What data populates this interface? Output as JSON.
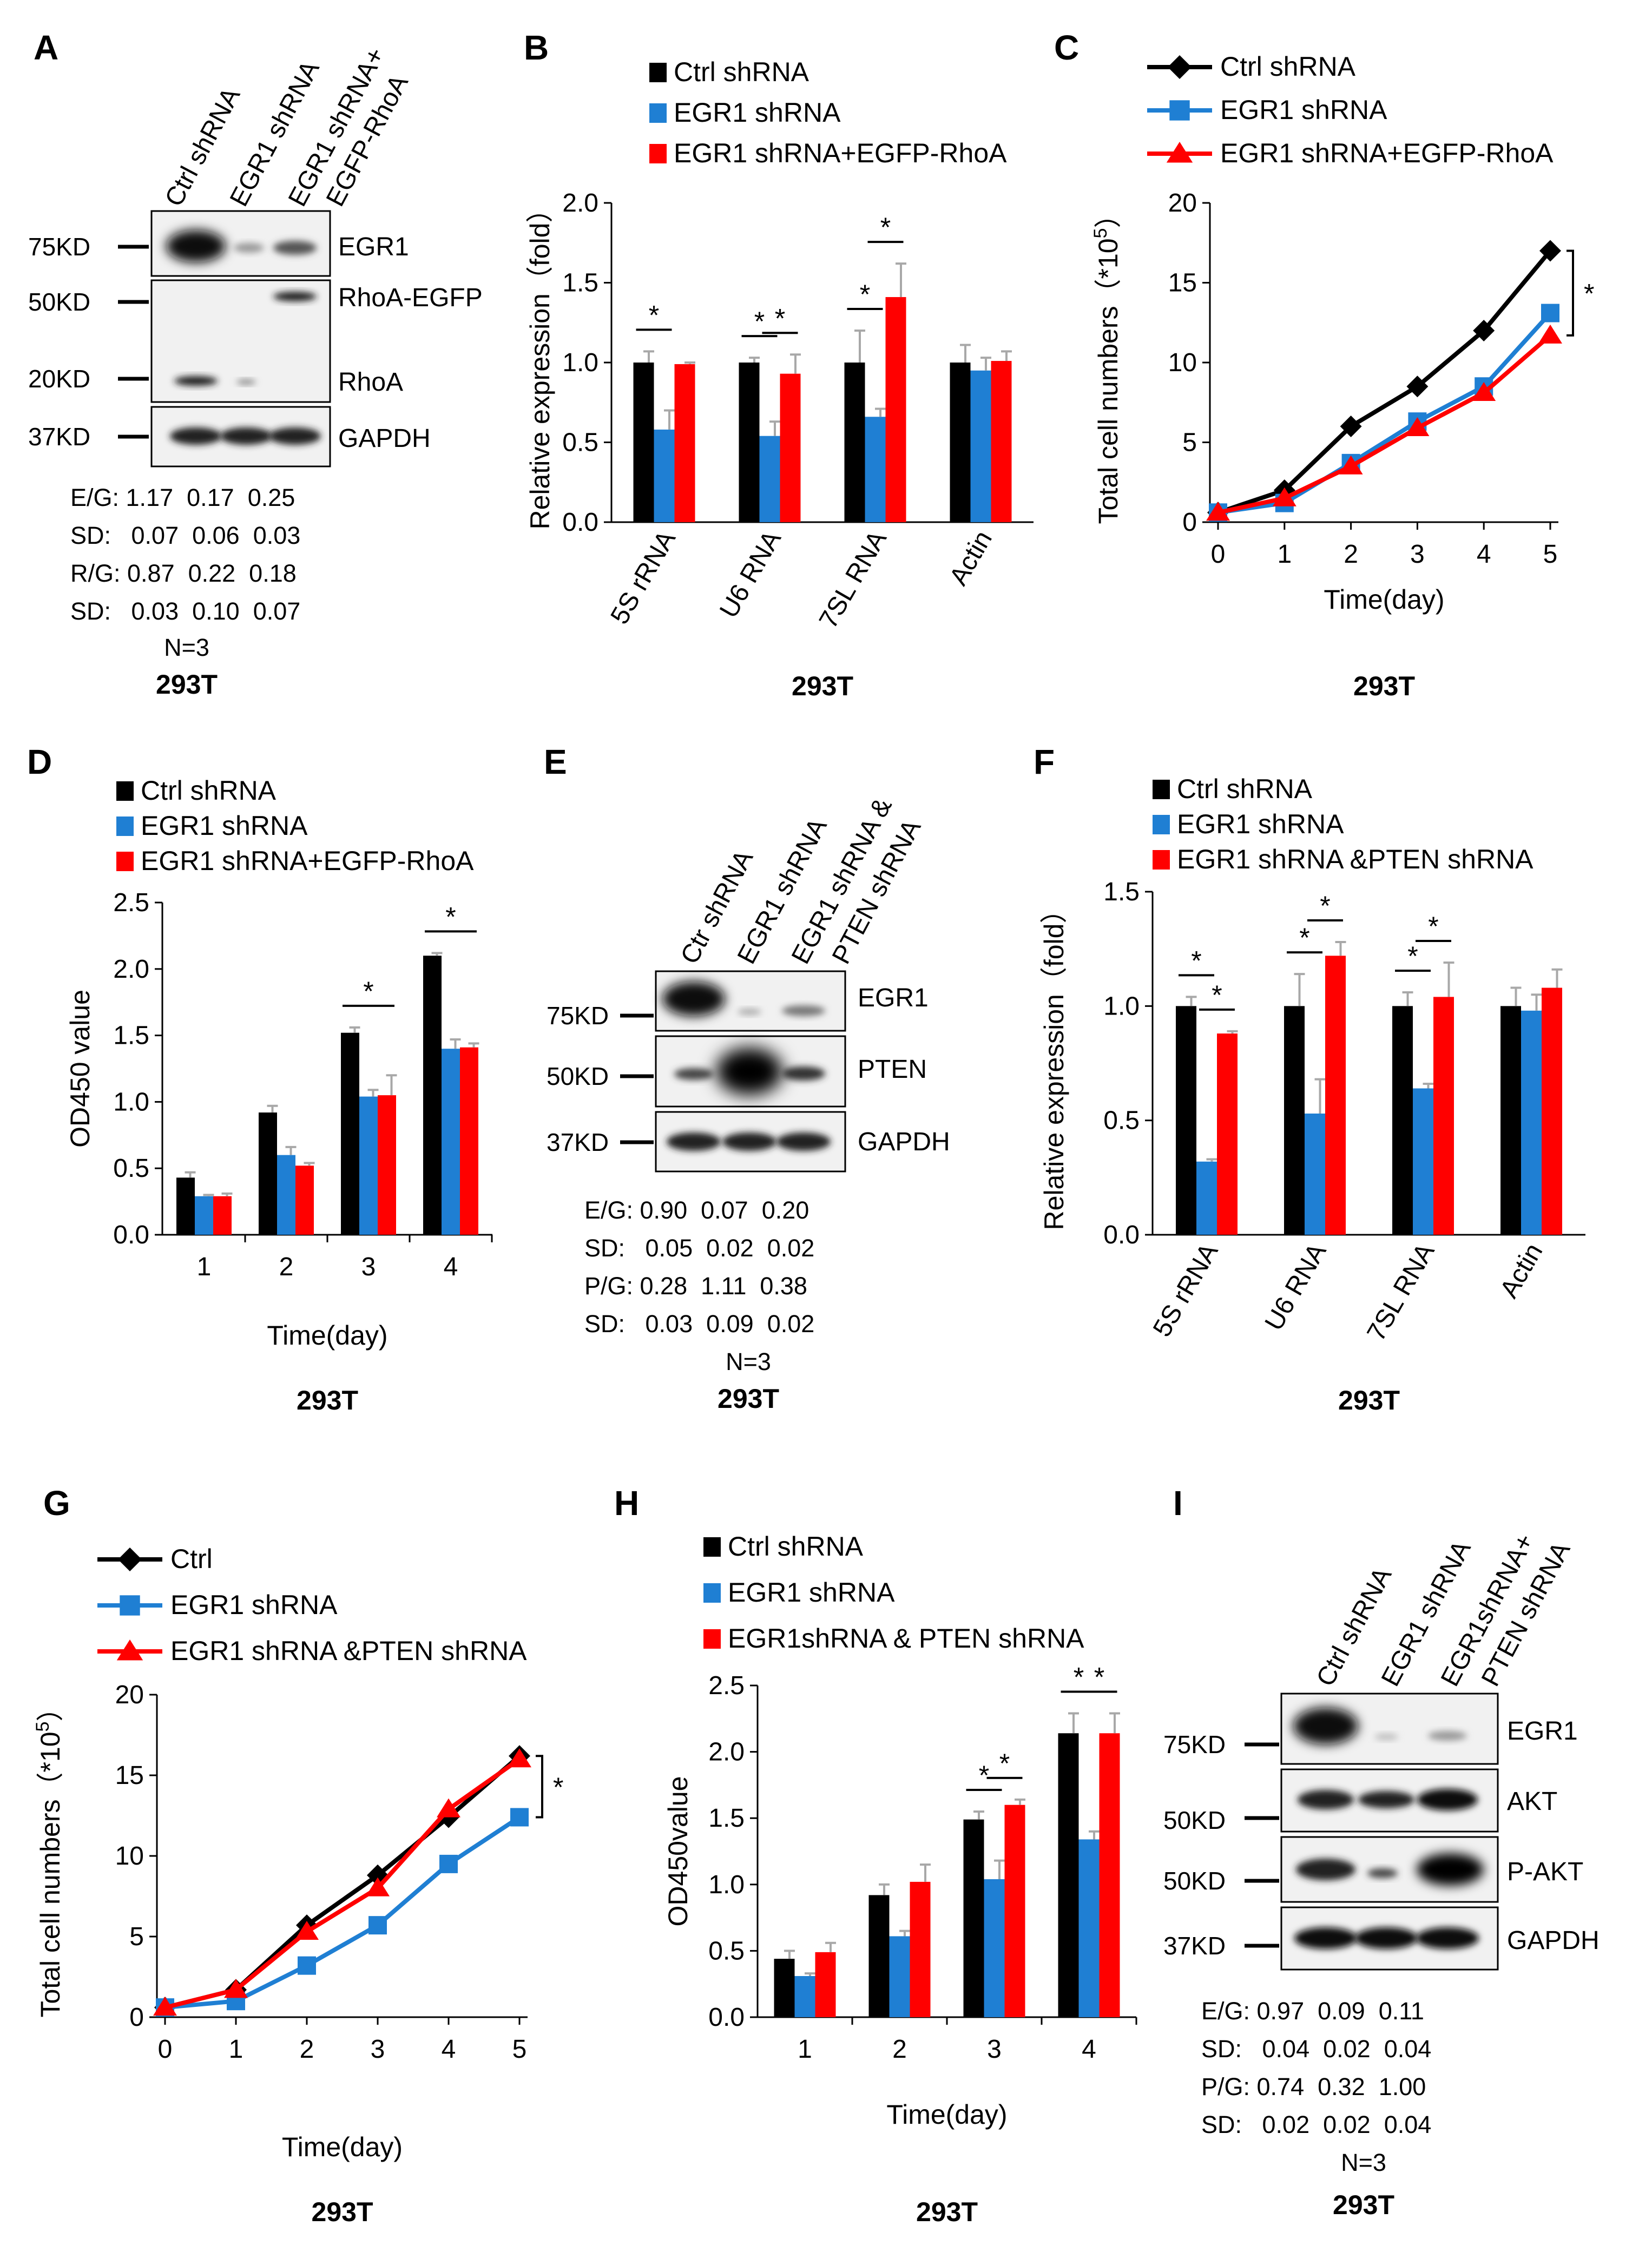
{
  "colors": {
    "ctrl": "#000000",
    "egr1": "#1f7fd3",
    "rescue": "#ff0000",
    "error": "#a8a8a8"
  },
  "cell_line": "293T",
  "panel_A": {
    "letter": "A",
    "lanes": [
      "Ctrl shRNA",
      "EGR1 shRNA",
      "EGR1 shRNA+",
      "EGFP-RhoA"
    ],
    "markers": [
      "75KD",
      "50KD",
      "20KD",
      "37KD"
    ],
    "bands": [
      "EGR1",
      "RhoA-EGFP",
      "RhoA",
      "GAPDH"
    ],
    "quant": [
      "E/G: 1.17  0.17  0.25",
      "SD:   0.07  0.06  0.03",
      "R/G: 0.87  0.22  0.18",
      "SD:   0.03  0.10  0.07"
    ],
    "n": "N=3",
    "caption": "293T"
  },
  "panel_E": {
    "letter": "E",
    "lanes": [
      "Ctr shRNA",
      "EGR1 shRNA",
      "EGR1 shRNA &",
      "PTEN shRNA"
    ],
    "markers": [
      "75KD",
      "50KD",
      "37KD"
    ],
    "bands": [
      "EGR1",
      "PTEN",
      "GAPDH"
    ],
    "quant": [
      "E/G: 0.90  0.07  0.20",
      "SD:   0.05  0.02  0.02",
      "P/G: 0.28  1.11  0.38",
      "SD:   0.03  0.09  0.02"
    ],
    "n": "N=3",
    "caption": "293T"
  },
  "panel_I": {
    "letter": "I",
    "lanes": [
      "Ctrl shRNA",
      "EGR1 shRNA",
      "EGR1shRNA+",
      "PTEN shRNA"
    ],
    "markers": [
      "75KD",
      "50KD",
      "50KD",
      "37KD"
    ],
    "bands": [
      "EGR1",
      "AKT",
      "P-AKT",
      "GAPDH"
    ],
    "quant": [
      "E/G: 0.97  0.09  0.11",
      "SD:   0.04  0.02  0.04",
      "P/G: 0.74  0.32  1.00",
      "SD:   0.02  0.02  0.04"
    ],
    "n": "N=3",
    "caption": "293T"
  },
  "chart_data": [
    {
      "id": "B",
      "type": "bar",
      "letter": "B",
      "categories": [
        "5S rRNA",
        "U6 RNA",
        "7SL RNA",
        "Actin"
      ],
      "series": [
        {
          "name": "Ctrl shRNA",
          "color": "#000000",
          "values": [
            1.0,
            1.0,
            1.0,
            1.0
          ],
          "errors": [
            0.07,
            0.03,
            0.2,
            0.11
          ]
        },
        {
          "name": "EGR1 shRNA",
          "color": "#1f7fd3",
          "values": [
            0.58,
            0.54,
            0.66,
            0.95
          ],
          "errors": [
            0.12,
            0.09,
            0.05,
            0.08
          ]
        },
        {
          "name": "EGR1 shRNA+EGFP-RhoA",
          "color": "#ff0000",
          "values": [
            0.99,
            0.93,
            1.41,
            1.01
          ],
          "errors": [
            0.01,
            0.12,
            0.21,
            0.06
          ]
        }
      ],
      "ylabel": "Relative expression（fold）",
      "xlabel": "",
      "ylim": [
        0,
        2.0
      ],
      "yticks": [
        "0.0",
        "0.5",
        "1.0",
        "1.5",
        "2.0"
      ],
      "star": "*",
      "caption": "293T"
    },
    {
      "id": "C",
      "type": "line",
      "letter": "C",
      "x": [
        0,
        1,
        2,
        3,
        4,
        5
      ],
      "series": [
        {
          "name": "Ctrl shRNA",
          "color": "#000000",
          "marker": "diamond",
          "values": [
            0.6,
            2.0,
            6.0,
            8.5,
            12.0,
            17.0
          ]
        },
        {
          "name": "EGR1 shRNA",
          "color": "#1f7fd3",
          "marker": "square",
          "values": [
            0.6,
            1.2,
            3.7,
            6.3,
            8.5,
            13.1
          ]
        },
        {
          "name": "EGR1 shRNA+EGFP-RhoA",
          "color": "#ff0000",
          "marker": "triangle",
          "values": [
            0.6,
            1.5,
            3.5,
            5.9,
            8.1,
            11.7
          ]
        }
      ],
      "ylabel": "Total cell numbers（*10",
      "ylabel_sup": "5",
      "ylabel_end": "）",
      "xlabel": "Time(day)",
      "ylim": [
        0,
        20
      ],
      "yticks": [
        "0",
        "5",
        "10",
        "15",
        "20"
      ],
      "xticks": [
        "0",
        "1",
        "2",
        "3",
        "4",
        "5"
      ],
      "star": "*",
      "caption": "293T"
    },
    {
      "id": "D",
      "type": "bar",
      "letter": "D",
      "categories": [
        "1",
        "2",
        "3",
        "4"
      ],
      "series": [
        {
          "name": "Ctrl shRNA",
          "color": "#000000",
          "values": [
            0.43,
            0.92,
            1.52,
            2.1
          ],
          "errors": [
            0.04,
            0.05,
            0.04,
            0.02
          ]
        },
        {
          "name": "EGR1 shRNA",
          "color": "#1f7fd3",
          "values": [
            0.29,
            0.6,
            1.04,
            1.4
          ],
          "errors": [
            0.01,
            0.06,
            0.05,
            0.07
          ]
        },
        {
          "name": "EGR1 shRNA+EGFP-RhoA",
          "color": "#ff0000",
          "values": [
            0.29,
            0.52,
            1.05,
            1.41
          ],
          "errors": [
            0.02,
            0.02,
            0.15,
            0.03
          ]
        }
      ],
      "ylabel": "OD450 value",
      "xlabel": "Time(day)",
      "ylim": [
        0,
        2.5
      ],
      "yticks": [
        "0.0",
        "0.5",
        "1.0",
        "1.5",
        "2.0",
        "2.5"
      ],
      "star": "*",
      "caption": "293T"
    },
    {
      "id": "F",
      "type": "bar",
      "letter": "F",
      "categories": [
        "5S rRNA",
        "U6 RNA",
        "7SL RNA",
        "Actin"
      ],
      "series": [
        {
          "name": "Ctrl shRNA",
          "color": "#000000",
          "values": [
            1.0,
            1.0,
            1.0,
            1.0
          ],
          "errors": [
            0.04,
            0.14,
            0.06,
            0.08
          ]
        },
        {
          "name": "EGR1 shRNA",
          "color": "#1f7fd3",
          "values": [
            0.32,
            0.53,
            0.64,
            0.98
          ],
          "errors": [
            0.01,
            0.15,
            0.02,
            0.07
          ]
        },
        {
          "name": "EGR1 shRNA &PTEN shRNA",
          "color": "#ff0000",
          "values": [
            0.88,
            1.22,
            1.04,
            1.08
          ],
          "errors": [
            0.01,
            0.06,
            0.15,
            0.08
          ]
        }
      ],
      "ylabel": "Relative expression（fold）",
      "xlabel": "",
      "ylim": [
        0,
        1.5
      ],
      "yticks": [
        "0.0",
        "0.5",
        "1.0",
        "1.5"
      ],
      "star": "*",
      "caption": "293T"
    },
    {
      "id": "G",
      "type": "line",
      "letter": "G",
      "x": [
        0,
        1,
        2,
        3,
        4,
        5
      ],
      "series": [
        {
          "name": "Ctrl",
          "color": "#000000",
          "marker": "diamond",
          "values": [
            0.6,
            1.7,
            5.7,
            8.8,
            12.4,
            16.2
          ]
        },
        {
          "name": "EGR1 shRNA",
          "color": "#1f7fd3",
          "marker": "square",
          "values": [
            0.6,
            1.0,
            3.2,
            5.7,
            9.5,
            12.4
          ]
        },
        {
          "name": "EGR1 shRNA &PTEN shRNA",
          "color": "#ff0000",
          "marker": "triangle",
          "values": [
            0.6,
            1.7,
            5.3,
            8.0,
            12.9,
            16.0
          ]
        }
      ],
      "ylabel": "Total cell numbers（*10",
      "ylabel_sup": "5",
      "ylabel_end": "）",
      "xlabel": "Time(day)",
      "ylim": [
        0,
        20
      ],
      "yticks": [
        "0",
        "5",
        "10",
        "15",
        "20"
      ],
      "xticks": [
        "0",
        "1",
        "2",
        "3",
        "4",
        "5"
      ],
      "star": "*",
      "caption": "293T"
    },
    {
      "id": "H",
      "type": "bar",
      "letter": "H",
      "categories": [
        "1",
        "2",
        "3",
        "4"
      ],
      "series": [
        {
          "name": "Ctrl shRNA",
          "color": "#000000",
          "values": [
            0.44,
            0.92,
            1.49,
            2.14
          ],
          "errors": [
            0.06,
            0.08,
            0.06,
            0.15
          ]
        },
        {
          "name": "EGR1 shRNA",
          "color": "#1f7fd3",
          "values": [
            0.31,
            0.61,
            1.04,
            1.34
          ],
          "errors": [
            0.02,
            0.04,
            0.14,
            0.06
          ]
        },
        {
          "name": "EGR1shRNA & PTEN shRNA",
          "color": "#ff0000",
          "values": [
            0.49,
            1.02,
            1.6,
            2.14
          ],
          "errors": [
            0.07,
            0.13,
            0.04,
            0.15
          ]
        }
      ],
      "ylabel": "OD450value",
      "xlabel": "Time(day)",
      "ylim": [
        0,
        2.5
      ],
      "yticks": [
        "0.0",
        "0.5",
        "1.0",
        "1.5",
        "2.0",
        "2.5"
      ],
      "star": "*",
      "caption": "293T"
    }
  ]
}
